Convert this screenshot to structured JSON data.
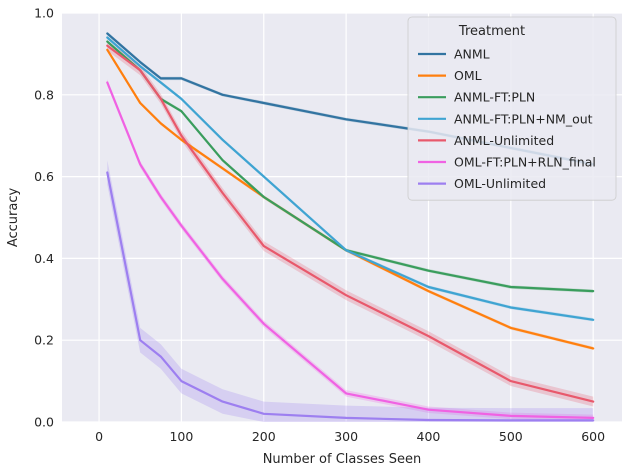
{
  "chart_data": {
    "type": "line",
    "xlabel": "Number of Classes Seen",
    "ylabel": "Accuracy",
    "xlim": [
      -45,
      635
    ],
    "ylim": [
      0.0,
      1.0
    ],
    "x_ticks": [
      0,
      100,
      200,
      300,
      400,
      500,
      600
    ],
    "x_tick_labels": [
      "0",
      "100",
      "200",
      "300",
      "400",
      "500",
      "600"
    ],
    "y_ticks": [
      0.0,
      0.2,
      0.4,
      0.6,
      0.8,
      1.0
    ],
    "y_tick_labels": [
      "0.0",
      "0.2",
      "0.4",
      "0.6",
      "0.8",
      "1.0"
    ],
    "grid": true,
    "background": "#eaeaf2",
    "legend": {
      "title": "Treatment",
      "placement": "top-right"
    },
    "x": [
      10,
      50,
      75,
      100,
      150,
      200,
      300,
      400,
      500,
      600
    ],
    "series": [
      {
        "name": "ANML",
        "color": "#3274a1",
        "band": 0.004,
        "values": [
          0.95,
          0.88,
          0.84,
          0.84,
          0.8,
          0.78,
          0.74,
          0.71,
          0.67,
          0.63
        ]
      },
      {
        "name": "OML",
        "color": "#ff7f0e",
        "band": 0.004,
        "values": [
          0.91,
          0.78,
          0.73,
          0.69,
          0.62,
          0.55,
          0.42,
          0.32,
          0.23,
          0.18
        ]
      },
      {
        "name": "ANML-FT:PLN",
        "color": "#3a9d5d",
        "band": 0.004,
        "values": [
          0.93,
          0.86,
          0.79,
          0.76,
          0.64,
          0.55,
          0.42,
          0.37,
          0.33,
          0.32
        ]
      },
      {
        "name": "ANML-FT:PLN+NM_out",
        "color": "#3fa4d2",
        "band": 0.004,
        "values": [
          0.94,
          0.87,
          0.83,
          0.79,
          0.69,
          0.6,
          0.42,
          0.33,
          0.28,
          0.25
        ]
      },
      {
        "name": "ANML-Unlimited",
        "color": "#e8596c",
        "band": 0.012,
        "values": [
          0.92,
          0.86,
          0.79,
          0.7,
          0.56,
          0.43,
          0.31,
          0.21,
          0.1,
          0.05
        ]
      },
      {
        "name": "OML-FT:PLN+RLN_final",
        "color": "#f062e3",
        "band": 0.008,
        "values": [
          0.83,
          0.63,
          0.55,
          0.48,
          0.35,
          0.24,
          0.07,
          0.03,
          0.015,
          0.01
        ]
      },
      {
        "name": "OML-Unlimited",
        "color": "#9d7ff0",
        "band": 0.03,
        "values": [
          0.61,
          0.2,
          0.16,
          0.1,
          0.05,
          0.02,
          0.01,
          0.005,
          0.004,
          0.004
        ]
      }
    ]
  }
}
